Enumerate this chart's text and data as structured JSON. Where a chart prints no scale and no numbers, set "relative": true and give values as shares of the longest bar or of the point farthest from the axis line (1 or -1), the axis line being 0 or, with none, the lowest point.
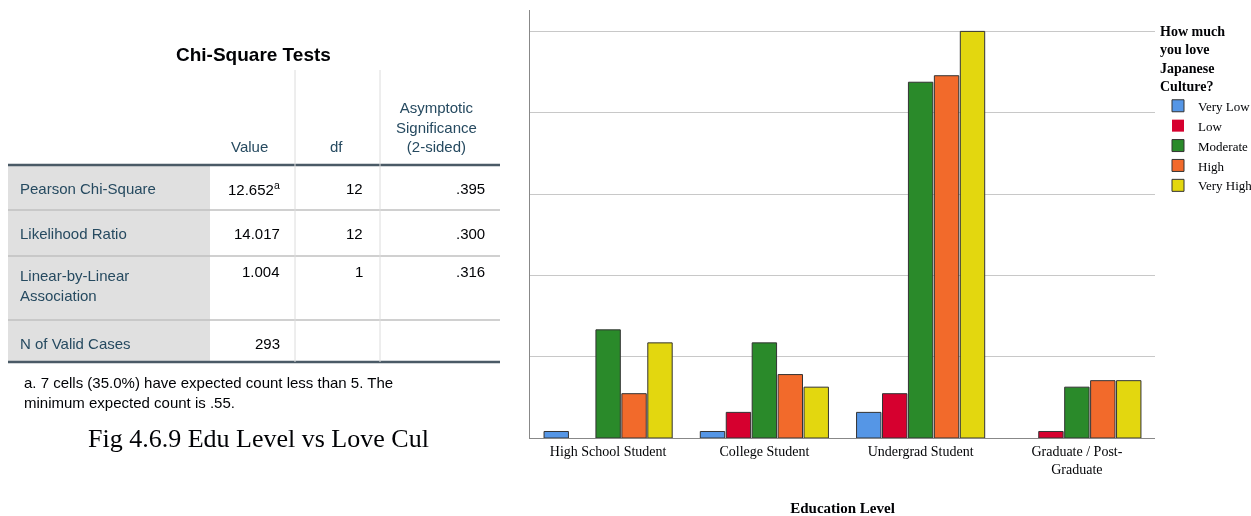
{
  "chart_data": [
    {
      "type": "other",
      "title": "Chi-Square Tests",
      "annotations": [
        "Value",
        "df",
        "Asymptotic Significance (2-sided)",
        "Pearson Chi-Square",
        "12.652$^{a}$",
        "12",
        ".395",
        "Likelihood Ratio",
        "14.017",
        "12",
        ".300",
        "Linear-by-Linear Association",
        "1.004",
        "1",
        ".316",
        "N of Valid Cases",
        "293",
        "a. 7 cells (35.0%) have expected count less than 5. The minimum expected count is .55.",
        "Fig 4.6.9 Edu Level vs Love Cul"
      ]
    },
    {
      "type": "bar",
      "relative": true,
      "xlabel": "Education Level",
      "legend_title": "How much you love Japanese Culture?",
      "legend": "top right",
      "grid": "y",
      "categories": [
        "High School Student",
        "College Student",
        "Undergrad Student",
        "Graduate / Post-Graduate"
      ],
      "series": [
        {
          "name": "Very Low",
          "color": "#5596e6",
          "values": [
            0.016,
            0.016,
            0.063,
            0
          ]
        },
        {
          "name": "Low",
          "color": "#d6002f",
          "values": [
            0,
            0.063,
            0.109,
            0.016
          ]
        },
        {
          "name": "Moderate",
          "color": "#2a8a2a",
          "values": [
            0.266,
            0.234,
            0.875,
            0.125
          ]
        },
        {
          "name": "High",
          "color": "#f26a2b",
          "values": [
            0.109,
            0.156,
            0.891,
            0.141
          ]
        },
        {
          "name": "Very High",
          "color": "#e3d70f",
          "values": [
            0.234,
            0.125,
            1,
            0.141
          ]
        }
      ]
    }
  ]
}
